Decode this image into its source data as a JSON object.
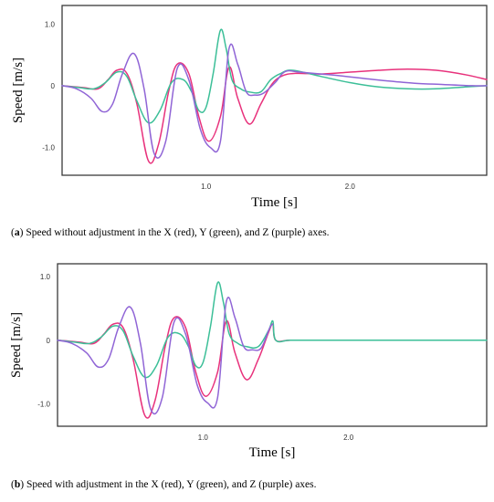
{
  "colors": {
    "x": "#e8327c",
    "y": "#3cbf98",
    "z": "#9065d6"
  },
  "chart_data": [
    {
      "type": "line",
      "panel_letter": "a",
      "caption_text": " Speed without adjustment in the X (red), Y (green), and Z (purple) axes.",
      "xlabel": "Time [s]",
      "ylabel": "Speed [m/s]",
      "xlim": [
        0,
        2.95
      ],
      "ylim": [
        -1.45,
        1.3
      ],
      "xticks": [
        {
          "v": 1.0,
          "label": "1.0"
        },
        {
          "v": 2.0,
          "label": "2.0"
        }
      ],
      "yticks": [
        {
          "v": 1.0,
          "label": "1.0"
        },
        {
          "v": 0,
          "label": "0"
        },
        {
          "v": -1.0,
          "label": "-1.0"
        }
      ],
      "series": [
        {
          "color_key": "x",
          "x": [
            0,
            0.15,
            0.25,
            0.32,
            0.38,
            0.45,
            0.52,
            0.6,
            0.67,
            0.74,
            0.8,
            0.88,
            0.95,
            1.02,
            1.1,
            1.16,
            1.22,
            1.3,
            1.38,
            1.45,
            1.52,
            1.62,
            1.8,
            2.0,
            2.2,
            2.4,
            2.6,
            2.8,
            2.95
          ],
          "y": [
            0,
            -0.03,
            -0.05,
            0.1,
            0.25,
            0.2,
            -0.3,
            -1.22,
            -0.95,
            -0.1,
            0.35,
            0.2,
            -0.5,
            -0.9,
            -0.5,
            0.3,
            -0.2,
            -0.62,
            -0.3,
            0.0,
            0.15,
            0.2,
            0.19,
            0.22,
            0.25,
            0.27,
            0.25,
            0.18,
            0.1
          ]
        },
        {
          "color_key": "y",
          "x": [
            0,
            0.12,
            0.22,
            0.3,
            0.38,
            0.45,
            0.52,
            0.6,
            0.68,
            0.76,
            0.84,
            0.9,
            0.95,
            1.0,
            1.05,
            1.1,
            1.14,
            1.18,
            1.24,
            1.3,
            1.38,
            1.45,
            1.52,
            1.6,
            1.8,
            2.0,
            2.2,
            2.4,
            2.6,
            2.8,
            2.95
          ],
          "y": [
            0,
            -0.03,
            -0.05,
            0.05,
            0.22,
            0.15,
            -0.25,
            -0.6,
            -0.4,
            0.05,
            0.1,
            -0.1,
            -0.4,
            -0.35,
            0.2,
            0.9,
            0.6,
            0.1,
            -0.05,
            -0.1,
            -0.1,
            0.1,
            0.2,
            0.25,
            0.15,
            0.05,
            -0.02,
            -0.05,
            -0.05,
            -0.02,
            0.0
          ]
        },
        {
          "color_key": "z",
          "x": [
            0,
            0.1,
            0.2,
            0.28,
            0.35,
            0.42,
            0.5,
            0.57,
            0.64,
            0.72,
            0.8,
            0.88,
            0.96,
            1.03,
            1.1,
            1.16,
            1.22,
            1.28,
            1.34,
            1.4,
            1.48,
            1.55,
            1.65,
            1.85,
            2.05,
            2.25,
            2.45,
            2.65,
            2.85,
            2.95
          ],
          "y": [
            0,
            -0.05,
            -0.2,
            -0.42,
            -0.3,
            0.2,
            0.52,
            -0.05,
            -1.1,
            -0.9,
            0.28,
            0.1,
            -0.7,
            -1.0,
            -0.9,
            0.6,
            0.35,
            -0.1,
            -0.15,
            -0.12,
            0.05,
            0.23,
            0.22,
            0.18,
            0.13,
            0.08,
            0.04,
            0.02,
            0.0,
            0.0
          ]
        }
      ]
    },
    {
      "type": "line",
      "panel_letter": "b",
      "caption_text": " Speed with adjustment in the X (red), Y (green), and Z (purple) axes.",
      "xlabel": "Time [s]",
      "ylabel": "Speed [m/s]",
      "xlim": [
        0,
        2.95
      ],
      "ylim": [
        -1.35,
        1.2
      ],
      "xticks": [
        {
          "v": 1.0,
          "label": "1.0"
        },
        {
          "v": 2.0,
          "label": "2.0"
        }
      ],
      "yticks": [
        {
          "v": 1.0,
          "label": "1.0"
        },
        {
          "v": 0,
          "label": "0"
        },
        {
          "v": -1.0,
          "label": "-1.0"
        }
      ],
      "series": [
        {
          "color_key": "x",
          "x": [
            0,
            0.15,
            0.25,
            0.32,
            0.38,
            0.45,
            0.52,
            0.6,
            0.67,
            0.74,
            0.8,
            0.88,
            0.95,
            1.02,
            1.1,
            1.16,
            1.22,
            1.3,
            1.38,
            1.45,
            1.48,
            1.5,
            1.6,
            1.8,
            2.0,
            2.2,
            2.4,
            2.6,
            2.8,
            2.95
          ],
          "y": [
            0,
            -0.03,
            -0.05,
            0.1,
            0.25,
            0.2,
            -0.3,
            -1.18,
            -0.95,
            -0.1,
            0.35,
            0.2,
            -0.5,
            -0.88,
            -0.5,
            0.3,
            -0.2,
            -0.62,
            -0.3,
            0.12,
            0.25,
            0,
            0,
            0,
            0,
            0,
            0,
            0,
            0,
            0
          ]
        },
        {
          "color_key": "y",
          "x": [
            0,
            0.12,
            0.22,
            0.3,
            0.38,
            0.45,
            0.52,
            0.6,
            0.68,
            0.76,
            0.84,
            0.9,
            0.95,
            1.0,
            1.05,
            1.1,
            1.14,
            1.18,
            1.24,
            1.3,
            1.38,
            1.45,
            1.48,
            1.5,
            1.6,
            1.8,
            2.0,
            2.2,
            2.4,
            2.6,
            2.8,
            2.95
          ],
          "y": [
            0,
            -0.03,
            -0.05,
            0.05,
            0.22,
            0.15,
            -0.25,
            -0.58,
            -0.4,
            0.05,
            0.1,
            -0.1,
            -0.4,
            -0.35,
            0.2,
            0.9,
            0.6,
            0.1,
            -0.05,
            -0.1,
            -0.1,
            0.15,
            0.3,
            0,
            0,
            0,
            0,
            0,
            0,
            0,
            0,
            0
          ]
        },
        {
          "color_key": "z",
          "x": [
            0,
            0.1,
            0.2,
            0.28,
            0.35,
            0.42,
            0.5,
            0.57,
            0.64,
            0.72,
            0.8,
            0.88,
            0.96,
            1.03,
            1.1,
            1.16,
            1.22,
            1.28,
            1.34,
            1.4,
            1.46,
            1.48
          ],
          "y": [
            0,
            -0.05,
            -0.2,
            -0.42,
            -0.3,
            0.2,
            0.52,
            -0.05,
            -1.08,
            -0.9,
            0.28,
            0.1,
            -0.7,
            -0.98,
            -0.9,
            0.6,
            0.35,
            -0.1,
            -0.15,
            -0.12,
            0.2,
            0.25
          ]
        }
      ]
    }
  ]
}
